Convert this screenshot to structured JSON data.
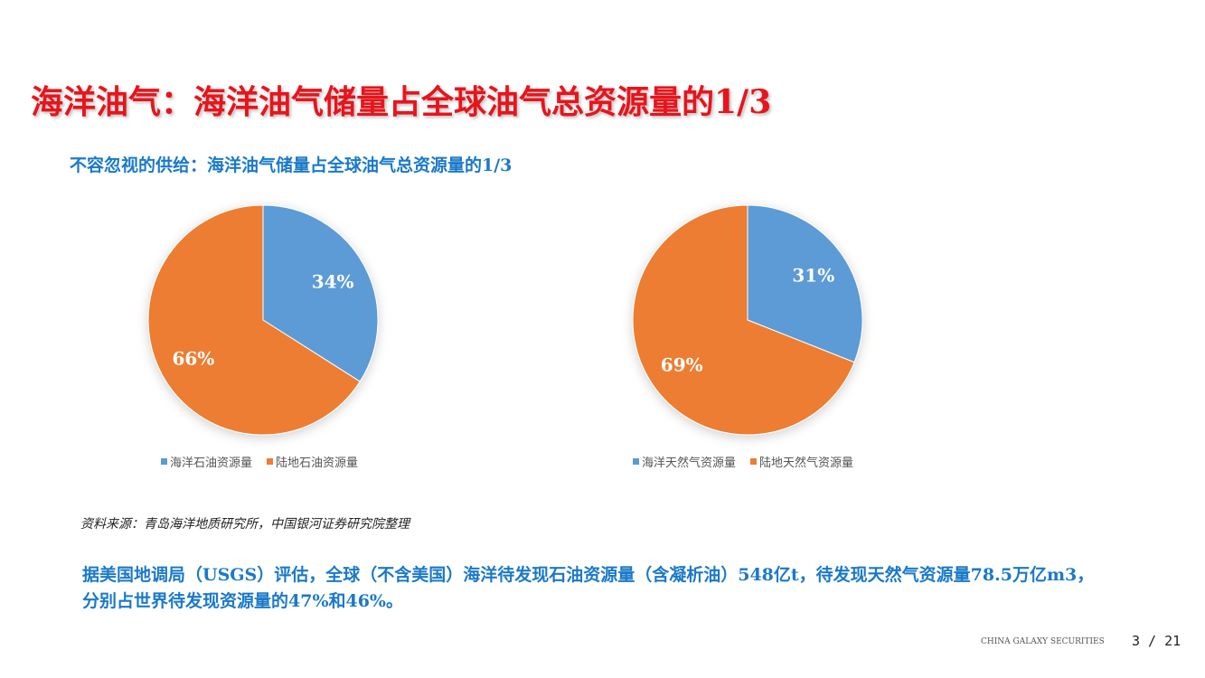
{
  "page": {
    "title": "海洋油气：海洋油气储量占全球油气总资源量的1/3",
    "subtitle": "不容忽视的供给：海洋油气储量占全球油气总资源量的1/3",
    "source": "资料来源：青岛海洋地质研究所，中国银河证券研究院整理",
    "body_text": "据美国地调局（USGS）评估，全球（不含美国）海洋待发现石油资源量（含凝析油）548亿t，待发现天然气资源量78.5万亿m3，分别占世界待发现资源量的47%和46%。",
    "footer_brand": "CHINA GALAXY SECURITIES",
    "page_number": "3 / 21"
  },
  "chart_data": [
    {
      "type": "pie",
      "categories": [
        "海洋石油资源量",
        "陆地石油资源量"
      ],
      "values": [
        34,
        66
      ],
      "labels": [
        "34%",
        "66%"
      ],
      "colors": [
        "#5b9bd5",
        "#ed7d31"
      ],
      "legend_position": "bottom"
    },
    {
      "type": "pie",
      "categories": [
        "海洋天然气资源量",
        "陆地天然气资源量"
      ],
      "values": [
        31,
        69
      ],
      "labels": [
        "31%",
        "69%"
      ],
      "colors": [
        "#5b9bd5",
        "#ed7d31"
      ],
      "legend_position": "bottom"
    }
  ]
}
